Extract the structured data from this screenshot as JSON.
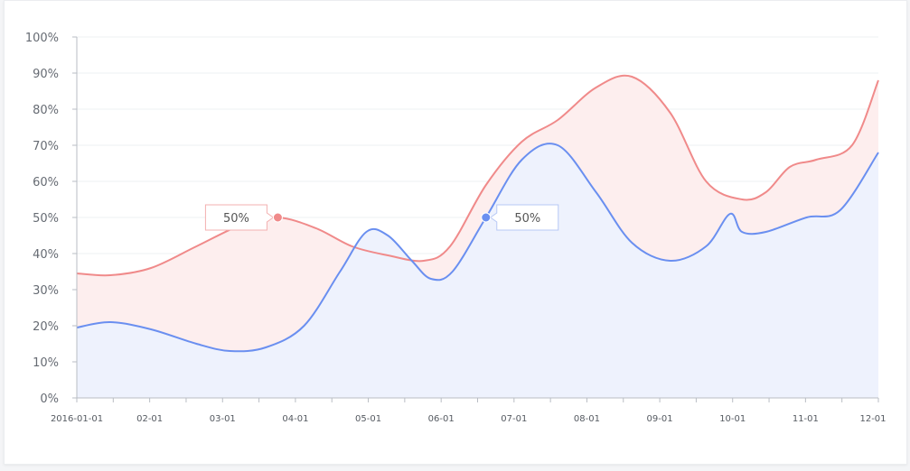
{
  "chart_data": {
    "type": "area",
    "title": "",
    "xlabel": "",
    "ylabel": "",
    "ylim": [
      0,
      100
    ],
    "y_ticks": [
      "0%",
      "10%",
      "20%",
      "30%",
      "40%",
      "50%",
      "60%",
      "70%",
      "80%",
      "90%",
      "100%"
    ],
    "x_ticks": [
      "2016-01-01",
      "02-01",
      "03-01",
      "04-01",
      "05-01",
      "06-01",
      "07-01",
      "08-01",
      "09-01",
      "10-01",
      "11-01",
      "12-01"
    ],
    "x_domain": [
      "2016-01-01",
      "2016-12-01"
    ],
    "grid": "horizontal",
    "series": [
      {
        "color": "#f08a8a",
        "fill": "#fdeeee",
        "x": [
          "2016-01-01",
          "2016-01-15",
          "2016-02-01",
          "2016-02-20",
          "2016-03-10",
          "2016-03-25",
          "2016-04-10",
          "2016-04-25",
          "2016-05-10",
          "2016-05-25",
          "2016-06-05",
          "2016-06-20",
          "2016-07-05",
          "2016-07-20",
          "2016-08-05",
          "2016-08-20",
          "2016-09-05",
          "2016-09-20",
          "2016-10-05",
          "2016-10-15",
          "2016-10-25",
          "2016-11-05",
          "2016-11-20",
          "2016-12-01"
        ],
        "y": [
          34.5,
          34,
          36,
          42,
          48,
          50,
          47,
          42,
          39.5,
          38,
          42,
          59,
          71,
          77,
          86,
          89,
          79,
          60,
          55,
          57,
          64,
          66,
          70,
          88
        ]
      },
      {
        "color": "#6a8ff0",
        "fill": "#eef2fd",
        "x": [
          "2016-01-01",
          "2016-01-15",
          "2016-02-01",
          "2016-02-20",
          "2016-03-05",
          "2016-03-20",
          "2016-04-05",
          "2016-04-20",
          "2016-05-01",
          "2016-05-10",
          "2016-05-20",
          "2016-05-28",
          "2016-06-06",
          "2016-06-20",
          "2016-07-05",
          "2016-07-20",
          "2016-08-05",
          "2016-08-20",
          "2016-09-05",
          "2016-09-20",
          "2016-09-30",
          "2016-10-05",
          "2016-10-15",
          "2016-11-01",
          "2016-11-15",
          "2016-12-01"
        ],
        "y": [
          19.5,
          21,
          19,
          15,
          13,
          14,
          20,
          35,
          46,
          45,
          38,
          33,
          35,
          50,
          66,
          70,
          57,
          43,
          38,
          42,
          51,
          46,
          46,
          50,
          52,
          68
        ]
      }
    ],
    "tooltips": [
      {
        "x": "2016-03-25",
        "y": 50,
        "label": "50%",
        "side": "left",
        "color": "#f08a8a",
        "border": "#f3b0b0"
      },
      {
        "x": "2016-06-20",
        "y": 50,
        "label": "50%",
        "side": "right",
        "color": "#6a8ff0",
        "border": "#b7c8f5"
      }
    ]
  }
}
